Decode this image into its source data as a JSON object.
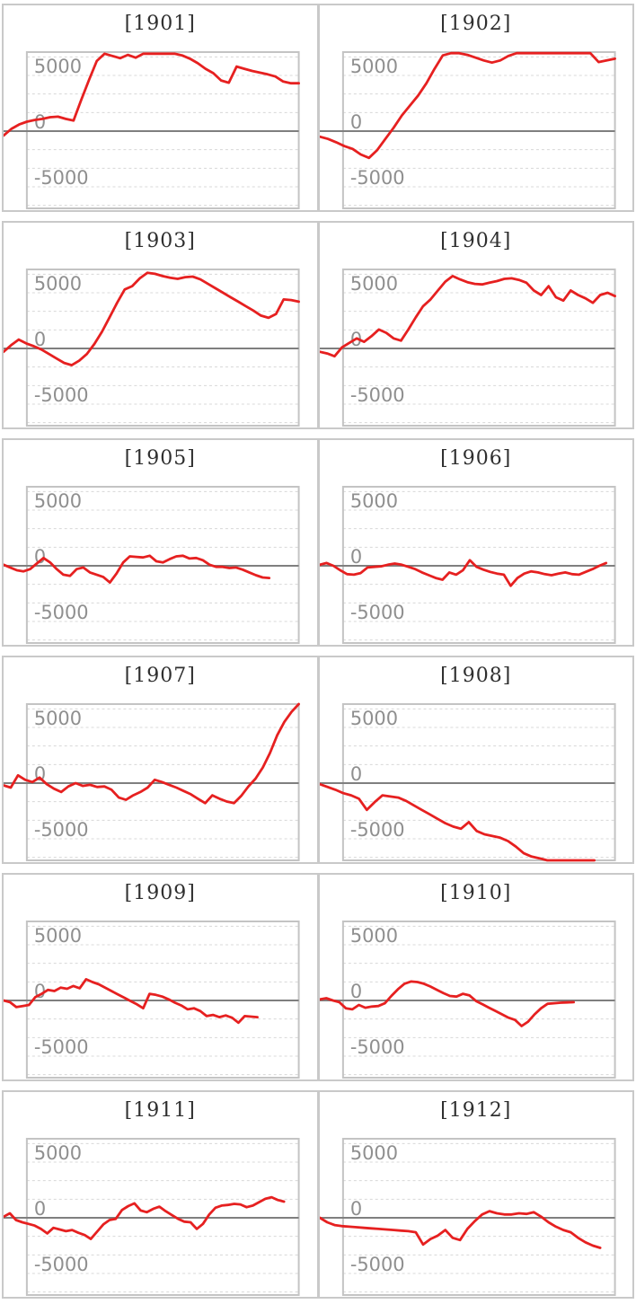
{
  "page": {
    "background": "#ffffff"
  },
  "style": {
    "series_color": "#e62020",
    "zero_line_color": "#7f7f7f",
    "grid_color": "#d8d8d8",
    "axis_text_color": "#8f8f8f",
    "panel_border_color": "#c9c9c9",
    "plot_border_color": "#c4c4c4",
    "title_color": "#2f2f2f"
  },
  "axis_common": {
    "yticks": [
      {
        "label": "5000",
        "value": 5000
      },
      {
        "label": "0",
        "value": 0
      },
      {
        "label": "-5000",
        "value": -5000
      }
    ],
    "ylim": [
      -7100,
      7100
    ],
    "grid_interval": 1667,
    "grid_style": "dashed",
    "zero_line": "solid-gray",
    "x_axis": "hidden (game index, evenly spaced)"
  },
  "chart_data": [
    {
      "type": "line",
      "title": "[1901]",
      "x_span": 1.0,
      "ylim": [
        -7100,
        7100
      ],
      "yticks": [
        "5000",
        "0",
        "-5000"
      ],
      "values": [
        -400,
        200,
        600,
        850,
        1000,
        1100,
        1250,
        1300,
        1100,
        950,
        2800,
        4600,
        6300,
        6950,
        6750,
        6550,
        6850,
        6600,
        6950,
        6950,
        6950,
        6950,
        6950,
        6800,
        6500,
        6100,
        5600,
        5200,
        4550,
        4350,
        5800,
        5600,
        5400,
        5250,
        5100,
        4900,
        4450,
        4300,
        4300
      ]
    },
    {
      "type": "line",
      "title": "[1902]",
      "x_span": 1.0,
      "ylim": [
        -7100,
        7100
      ],
      "yticks": [
        "5000",
        "0",
        "-5000"
      ],
      "values": [
        -500,
        -700,
        -1000,
        -1350,
        -1600,
        -2100,
        -2400,
        -1700,
        -700,
        300,
        1400,
        2300,
        3200,
        4300,
        5600,
        6800,
        7000,
        7000,
        6850,
        6600,
        6350,
        6150,
        6350,
        6750,
        7000,
        7000,
        7000,
        7000,
        7000,
        7000,
        7000,
        7000,
        7000,
        7000,
        6200,
        6350,
        6500
      ]
    },
    {
      "type": "line",
      "title": "[1903]",
      "x_span": 1.0,
      "ylim": [
        -7100,
        7100
      ],
      "yticks": [
        "5000",
        "0",
        "-5000"
      ],
      "values": [
        -300,
        300,
        800,
        450,
        200,
        -100,
        -500,
        -900,
        -1300,
        -1500,
        -1100,
        -500,
        400,
        1500,
        2800,
        4100,
        5300,
        5600,
        6300,
        6800,
        6700,
        6500,
        6350,
        6250,
        6400,
        6450,
        6200,
        5800,
        5400,
        5000,
        4600,
        4200,
        3800,
        3400,
        2950,
        2750,
        3100,
        4400,
        4350,
        4200
      ]
    },
    {
      "type": "line",
      "title": "[1904]",
      "x_span": 1.0,
      "ylim": [
        -7100,
        7100
      ],
      "yticks": [
        "5000",
        "0",
        "-5000"
      ],
      "values": [
        -300,
        -450,
        -700,
        100,
        500,
        900,
        600,
        1100,
        1700,
        1400,
        900,
        700,
        1700,
        2800,
        3800,
        4400,
        5200,
        6000,
        6500,
        6200,
        5950,
        5800,
        5750,
        5900,
        6050,
        6250,
        6300,
        6150,
        5900,
        5200,
        4800,
        5600,
        4600,
        4300,
        5200,
        4800,
        4500,
        4100,
        4800,
        5000,
        4700
      ]
    },
    {
      "type": "line",
      "title": "[1905]",
      "x_span": 0.9,
      "ylim": [
        -7100,
        7100
      ],
      "yticks": [
        "5000",
        "0",
        "-5000"
      ],
      "values": [
        100,
        -150,
        -400,
        -500,
        -300,
        200,
        700,
        300,
        -300,
        -800,
        -900,
        -300,
        -150,
        -600,
        -800,
        -1000,
        -1500,
        -700,
        300,
        850,
        800,
        750,
        900,
        400,
        300,
        600,
        850,
        900,
        650,
        700,
        500,
        100,
        -100,
        -100,
        -200,
        -150,
        -350,
        -600,
        -850,
        -1050,
        -1100
      ]
    },
    {
      "type": "line",
      "title": "[1906]",
      "x_span": 0.97,
      "ylim": [
        -7100,
        7100
      ],
      "yticks": [
        "5000",
        "0",
        "-5000"
      ],
      "values": [
        100,
        250,
        0,
        -400,
        -750,
        -800,
        -650,
        -150,
        -100,
        -50,
        100,
        200,
        100,
        -100,
        -300,
        -600,
        -850,
        -1100,
        -1250,
        -600,
        -800,
        -400,
        500,
        -100,
        -350,
        -550,
        -700,
        -800,
        -1800,
        -1100,
        -700,
        -500,
        -600,
        -750,
        -850,
        -700,
        -600,
        -750,
        -800,
        -550,
        -300,
        0,
        250
      ]
    },
    {
      "type": "line",
      "title": "[1907]",
      "x_span": 1.0,
      "ylim": [
        -7100,
        7100
      ],
      "yticks": [
        "5000",
        "0",
        "-5000"
      ],
      "values": [
        -200,
        -400,
        700,
        300,
        100,
        500,
        -100,
        -500,
        -800,
        -300,
        0,
        -250,
        -150,
        -350,
        -300,
        -600,
        -1300,
        -1500,
        -1100,
        -800,
        -400,
        300,
        100,
        -150,
        -400,
        -700,
        -1000,
        -1400,
        -1800,
        -1100,
        -1400,
        -1650,
        -1800,
        -1150,
        -300,
        400,
        1400,
        2700,
        4300,
        5500,
        6400,
        7100
      ]
    },
    {
      "type": "line",
      "title": "[1908]",
      "x_span": 0.93,
      "ylim": [
        -7100,
        7100
      ],
      "yticks": [
        "5000",
        "0",
        "-5000"
      ],
      "values": [
        -100,
        -350,
        -600,
        -900,
        -1100,
        -1400,
        -2400,
        -1700,
        -1100,
        -1200,
        -1300,
        -1600,
        -2000,
        -2400,
        -2800,
        -3200,
        -3600,
        -3900,
        -4100,
        -3500,
        -4300,
        -4600,
        -4750,
        -4900,
        -5200,
        -5700,
        -6300,
        -6600,
        -6750,
        -7000,
        -7100,
        -7100,
        -7100,
        -7100,
        -7100,
        -7100
      ]
    },
    {
      "type": "line",
      "title": "[1909]",
      "x_span": 0.86,
      "ylim": [
        -7100,
        7100
      ],
      "yticks": [
        "5000",
        "0",
        "-5000"
      ],
      "values": [
        0,
        -150,
        -600,
        -500,
        -400,
        300,
        600,
        950,
        850,
        1150,
        1050,
        1300,
        1100,
        1900,
        1650,
        1450,
        1150,
        850,
        550,
        250,
        -50,
        -350,
        -700,
        600,
        500,
        350,
        100,
        -200,
        -450,
        -800,
        -700,
        -950,
        -1400,
        -1300,
        -1500,
        -1350,
        -1550,
        -2000,
        -1400,
        -1450,
        -1500
      ]
    },
    {
      "type": "line",
      "title": "[1910]",
      "x_span": 0.86,
      "ylim": [
        -7100,
        7100
      ],
      "yticks": [
        "5000",
        "0",
        "-5000"
      ],
      "values": [
        100,
        200,
        0,
        -150,
        -700,
        -800,
        -400,
        -650,
        -550,
        -500,
        -250,
        400,
        1000,
        1500,
        1700,
        1650,
        1500,
        1250,
        950,
        650,
        400,
        350,
        600,
        450,
        -50,
        -350,
        -650,
        -950,
        -1250,
        -1550,
        -1750,
        -2300,
        -1900,
        -1250,
        -700,
        -300,
        -250,
        -200,
        -180,
        -150
      ]
    },
    {
      "type": "line",
      "title": "[1911]",
      "x_span": 0.95,
      "ylim": [
        -7100,
        7100
      ],
      "yticks": [
        "5000",
        "0",
        "-5000"
      ],
      "values": [
        100,
        400,
        -200,
        -400,
        -550,
        -700,
        -1000,
        -1400,
        -900,
        -1050,
        -1200,
        -1100,
        -1350,
        -1550,
        -1900,
        -1250,
        -600,
        -200,
        -100,
        700,
        1050,
        1300,
        650,
        500,
        800,
        1000,
        600,
        250,
        -100,
        -350,
        -400,
        -1000,
        -550,
        300,
        900,
        1100,
        1150,
        1250,
        1200,
        950,
        1100,
        1400,
        1700,
        1850,
        1600,
        1450
      ]
    },
    {
      "type": "line",
      "title": "[1912]",
      "x_span": 0.95,
      "ylim": [
        -7100,
        7100
      ],
      "yticks": [
        "5000",
        "0",
        "-5000"
      ],
      "values": [
        0,
        -400,
        -650,
        -750,
        -800,
        -850,
        -900,
        -950,
        -1000,
        -1050,
        -1100,
        -1150,
        -1200,
        -1300,
        -2400,
        -1900,
        -1600,
        -1100,
        -1800,
        -2000,
        -1000,
        -300,
        300,
        600,
        400,
        300,
        300,
        400,
        350,
        500,
        100,
        -400,
        -800,
        -1100,
        -1300,
        -1800,
        -2200,
        -2500,
        -2700
      ]
    }
  ]
}
